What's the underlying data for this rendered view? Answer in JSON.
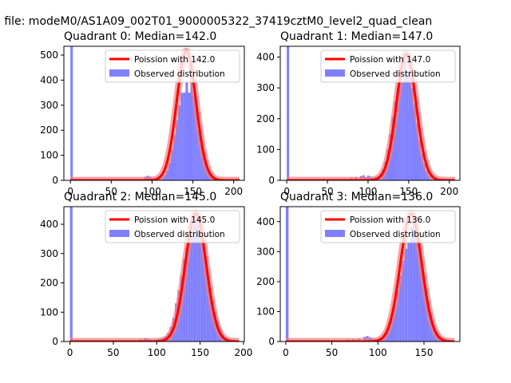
{
  "figure": {
    "suptitle": "n file: modeM0/AS1A09_002T01_9000005322_37419cztM0_level2_quad_clean"
  },
  "colors": {
    "poisson": "#ff0000",
    "poisson_band": "#f08080",
    "hist": "#8080ff"
  },
  "chart_data": [
    {
      "type": "bar",
      "title": "Quadrant 0: Median=142.0",
      "median": 142.0,
      "xlim": [
        -8,
        213
      ],
      "ylim": [
        0,
        535
      ],
      "xticks": [
        0,
        50,
        100,
        150,
        200
      ],
      "yticks": [
        0,
        100,
        200,
        300,
        400,
        500
      ],
      "legend": {
        "position": "top-right",
        "entries": [
          "Poission with 142.0",
          "Observed distribution"
        ]
      },
      "poisson_peak": 515,
      "hist_zero_bar": 535,
      "histogram": {
        "bins": [
          [
            60,
            63,
            3
          ],
          [
            66,
            69,
            2
          ],
          [
            72,
            75,
            4
          ],
          [
            78,
            81,
            3
          ],
          [
            84,
            87,
            6
          ],
          [
            90,
            93,
            14
          ],
          [
            93,
            96,
            18
          ],
          [
            96,
            99,
            15
          ],
          [
            99,
            102,
            8
          ],
          [
            102,
            105,
            6
          ],
          [
            105,
            108,
            5
          ],
          [
            108,
            111,
            8
          ],
          [
            111,
            114,
            12
          ],
          [
            114,
            117,
            20
          ],
          [
            117,
            120,
            40
          ],
          [
            120,
            123,
            70
          ],
          [
            123,
            126,
            120
          ],
          [
            126,
            129,
            180
          ],
          [
            129,
            132,
            240
          ],
          [
            132,
            135,
            300
          ],
          [
            135,
            138,
            350
          ],
          [
            138,
            141,
            350
          ],
          [
            141,
            144,
            390
          ],
          [
            144,
            147,
            350
          ],
          [
            147,
            150,
            410
          ],
          [
            150,
            153,
            340
          ],
          [
            153,
            156,
            285
          ],
          [
            156,
            159,
            200
          ],
          [
            159,
            162,
            150
          ],
          [
            162,
            165,
            105
          ],
          [
            165,
            168,
            70
          ],
          [
            168,
            171,
            40
          ],
          [
            171,
            174,
            25
          ],
          [
            174,
            177,
            12
          ],
          [
            177,
            180,
            6
          ]
        ]
      }
    },
    {
      "type": "bar",
      "title": "Quadrant 1: Median=147.0",
      "median": 147.0,
      "xlim": [
        -8,
        213
      ],
      "ylim": [
        0,
        435
      ],
      "xticks": [
        0,
        50,
        100,
        150,
        200
      ],
      "yticks": [
        0,
        100,
        200,
        300,
        400
      ],
      "legend": {
        "position": "top-right",
        "entries": [
          "Poission with 147.0",
          "Observed distribution"
        ]
      },
      "poisson_peak": 410,
      "hist_zero_bar": 435,
      "histogram": {
        "bins": [
          [
            66,
            69,
            3
          ],
          [
            72,
            75,
            4
          ],
          [
            78,
            81,
            8
          ],
          [
            84,
            87,
            10
          ],
          [
            90,
            93,
            14
          ],
          [
            93,
            96,
            16
          ],
          [
            96,
            99,
            10
          ],
          [
            99,
            102,
            15
          ],
          [
            102,
            105,
            12
          ],
          [
            105,
            108,
            8
          ],
          [
            108,
            111,
            10
          ],
          [
            111,
            114,
            14
          ],
          [
            114,
            117,
            22
          ],
          [
            117,
            120,
            35
          ],
          [
            120,
            123,
            60
          ],
          [
            123,
            126,
            100
          ],
          [
            126,
            129,
            150
          ],
          [
            129,
            132,
            205
          ],
          [
            132,
            135,
            255
          ],
          [
            135,
            138,
            300
          ],
          [
            138,
            141,
            340
          ],
          [
            141,
            144,
            320
          ],
          [
            144,
            147,
            400
          ],
          [
            147,
            150,
            360
          ],
          [
            150,
            153,
            340
          ],
          [
            153,
            156,
            300
          ],
          [
            156,
            159,
            245
          ],
          [
            159,
            162,
            185
          ],
          [
            162,
            165,
            130
          ],
          [
            165,
            168,
            85
          ],
          [
            168,
            171,
            55
          ],
          [
            171,
            174,
            30
          ],
          [
            174,
            177,
            15
          ],
          [
            177,
            180,
            7
          ]
        ]
      }
    },
    {
      "type": "bar",
      "title": "Quadrant 2: Median=145.0",
      "median": 145.0,
      "xlim": [
        -7,
        201
      ],
      "ylim": [
        0,
        460
      ],
      "xticks": [
        0,
        50,
        100,
        150,
        200
      ],
      "yticks": [
        0,
        100,
        200,
        300,
        400
      ],
      "legend": {
        "position": "top-right",
        "entries": [
          "Poission with 145.0",
          "Observed distribution"
        ]
      },
      "poisson_peak": 437,
      "hist_zero_bar": 460,
      "histogram": {
        "bins": [
          [
            65,
            68,
            2
          ],
          [
            72,
            75,
            3
          ],
          [
            80,
            83,
            8
          ],
          [
            85,
            88,
            12
          ],
          [
            88,
            91,
            10
          ],
          [
            91,
            94,
            6
          ],
          [
            94,
            97,
            5
          ],
          [
            97,
            100,
            5
          ],
          [
            100,
            103,
            8
          ],
          [
            103,
            106,
            10
          ],
          [
            106,
            109,
            12
          ],
          [
            109,
            112,
            18
          ],
          [
            112,
            115,
            30
          ],
          [
            115,
            118,
            50
          ],
          [
            118,
            121,
            80
          ],
          [
            121,
            124,
            130
          ],
          [
            124,
            127,
            175
          ],
          [
            127,
            130,
            225
          ],
          [
            130,
            133,
            280
          ],
          [
            133,
            136,
            320
          ],
          [
            136,
            139,
            380
          ],
          [
            139,
            142,
            400
          ],
          [
            142,
            145,
            440
          ],
          [
            145,
            148,
            420
          ],
          [
            148,
            151,
            400
          ],
          [
            151,
            154,
            350
          ],
          [
            154,
            157,
            300
          ],
          [
            157,
            160,
            240
          ],
          [
            160,
            163,
            185
          ],
          [
            163,
            166,
            140
          ],
          [
            166,
            169,
            100
          ],
          [
            169,
            172,
            70
          ],
          [
            172,
            175,
            45
          ],
          [
            175,
            178,
            25
          ],
          [
            178,
            181,
            12
          ],
          [
            181,
            184,
            5
          ]
        ]
      }
    },
    {
      "type": "bar",
      "title": "Quadrant 3: Median=136.0",
      "median": 136.0,
      "xlim": [
        -6,
        189
      ],
      "ylim": [
        0,
        450
      ],
      "xticks": [
        0,
        50,
        100,
        150
      ],
      "yticks": [
        0,
        100,
        200,
        300,
        400
      ],
      "legend": {
        "position": "top-right",
        "entries": [
          "Poission with 136.0",
          "Observed distribution"
        ]
      },
      "poisson_peak": 427,
      "hist_zero_bar": 450,
      "histogram": {
        "bins": [
          [
            60,
            63,
            4
          ],
          [
            66,
            69,
            6
          ],
          [
            72,
            75,
            8
          ],
          [
            78,
            81,
            10
          ],
          [
            84,
            87,
            15
          ],
          [
            87,
            90,
            18
          ],
          [
            90,
            93,
            14
          ],
          [
            93,
            96,
            10
          ],
          [
            96,
            99,
            8
          ],
          [
            99,
            102,
            10
          ],
          [
            102,
            105,
            14
          ],
          [
            105,
            108,
            20
          ],
          [
            108,
            111,
            30
          ],
          [
            111,
            114,
            50
          ],
          [
            114,
            117,
            80
          ],
          [
            117,
            120,
            120
          ],
          [
            120,
            123,
            170
          ],
          [
            123,
            126,
            220
          ],
          [
            126,
            129,
            270
          ],
          [
            129,
            132,
            310
          ],
          [
            132,
            135,
            330
          ],
          [
            135,
            138,
            380
          ],
          [
            138,
            141,
            400
          ],
          [
            141,
            144,
            350
          ],
          [
            144,
            147,
            300
          ],
          [
            147,
            150,
            240
          ],
          [
            150,
            153,
            180
          ],
          [
            153,
            156,
            130
          ],
          [
            156,
            159,
            90
          ],
          [
            159,
            162,
            55
          ],
          [
            162,
            165,
            32
          ],
          [
            165,
            168,
            18
          ],
          [
            168,
            171,
            8
          ]
        ]
      }
    }
  ]
}
